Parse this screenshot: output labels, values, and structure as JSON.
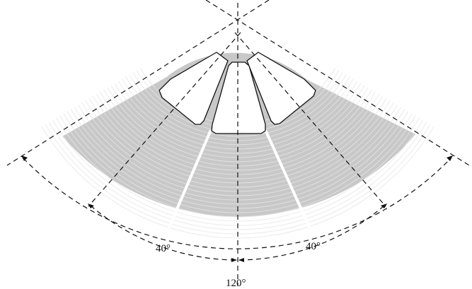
{
  "diagram": {
    "colors": {
      "sector_fill": "#c8c8c8",
      "sector_ring": "#e6e6e6",
      "line": "#111111",
      "background": "#ffffff"
    },
    "angles": {
      "left_label": "40°",
      "right_label": "40°",
      "total_label": "120°"
    }
  }
}
